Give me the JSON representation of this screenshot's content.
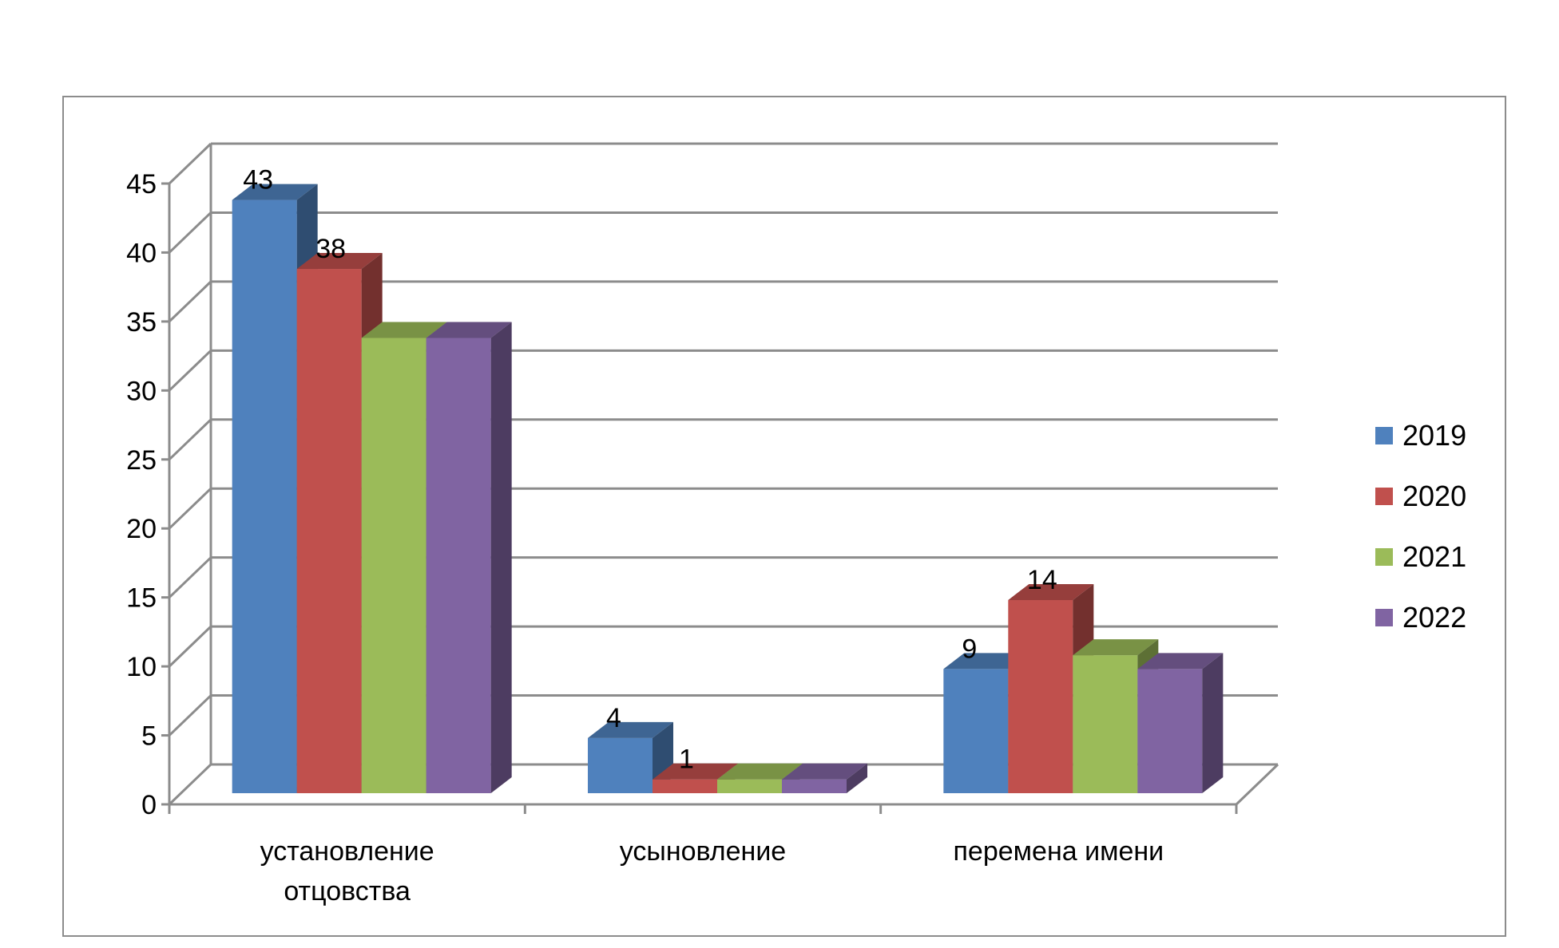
{
  "chart_data": {
    "type": "bar",
    "categories": [
      "установление отцовства",
      "усыновление",
      "перемена имени"
    ],
    "category_lines": [
      [
        "установление",
        "отцовства"
      ],
      [
        "усыновление"
      ],
      [
        "перемена имени"
      ]
    ],
    "series": [
      {
        "name": "2019",
        "color": "#4F81BD",
        "values": [
          43,
          4,
          9
        ],
        "labels": [
          "43",
          "4",
          "9"
        ]
      },
      {
        "name": "2020",
        "color": "#C0504D",
        "values": [
          38,
          1,
          14
        ],
        "labels": [
          "38",
          "1",
          "14"
        ]
      },
      {
        "name": "2021",
        "color": "#9BBB59",
        "values": [
          33,
          1,
          10
        ],
        "labels": [
          "",
          "",
          ""
        ]
      },
      {
        "name": "2022",
        "color": "#8064A2",
        "values": [
          33,
          1,
          9
        ],
        "labels": [
          "",
          "",
          ""
        ]
      }
    ],
    "yticks": [
      "0",
      "5",
      "10",
      "15",
      "20",
      "25",
      "30",
      "35",
      "40",
      "45"
    ],
    "ylim": [
      0,
      45
    ],
    "grid": true,
    "legend_position": "right",
    "style": "3d-clustered-column"
  }
}
